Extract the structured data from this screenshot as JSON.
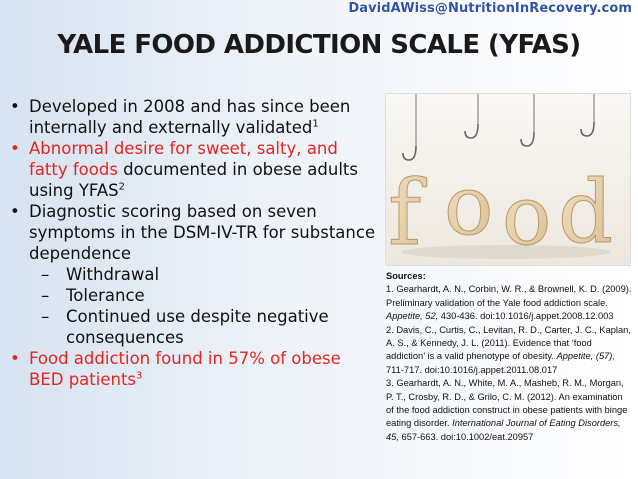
{
  "watermark": "DavidAWiss@NutritionInRecovery.com",
  "title": "YALE FOOD ADDICTION SCALE (YFAS)",
  "bullets": {
    "b1_text": "Developed in 2008 and has since been internally and externally validated",
    "b1_sup": "1",
    "b2_red": "Abnormal desire for sweet, salty, and fatty foods",
    "b2_rest": " documented in obese adults using YFAS",
    "b2_sup": "2",
    "b3_text": "Diagnostic scoring based on seven symptoms in the DSM-IV-TR for substance dependence",
    "sub1": "Withdrawal",
    "sub2": "Tolerance",
    "sub3": "Continued use despite negative consequences",
    "b4_text": "Food addiction found in 57% of obese BED patients",
    "b4_sup": "3"
  },
  "photo": {
    "letters": [
      "f",
      "o",
      "o",
      "d"
    ],
    "icon": "fishing-hooks-food-letters"
  },
  "sources": {
    "header": "Sources:",
    "ref1_a": "1. Gearhardt, A. N., Corbin, W. R., & Brownell, K. D. (2009). Preliminary validation of the Yale food addiction scale. ",
    "ref1_journal": "Appetite, 52,",
    "ref1_b": " 430-436. doi:10.1016/j.appet.2008.12.003",
    "ref2_a": "2. Davis, C., Curtis, C., Levitan, R. D., Carter, J. C., Kaplan, A. S., & Kennedy, J. L. (2011). Evidence that ‘food addiction’ is a valid phenotype of obesity. ",
    "ref2_journal": "Appetite, (57),",
    "ref2_b": " 711-717. doi:10.1016/j.appet.2011.08.017",
    "ref3_a": "3. Gearhardt, A. N., White, M. A., Masheb, R. M., Morgan, P. T., Crosby, R. D., & Grilo, C. M. (2012). An examination of the food addiction construct in obese patients with binge eating disorder. ",
    "ref3_journal": "International Journal of Eating Disorders, 45,",
    "ref3_b": " 657-663. doi:10.1002/eat.20957"
  }
}
